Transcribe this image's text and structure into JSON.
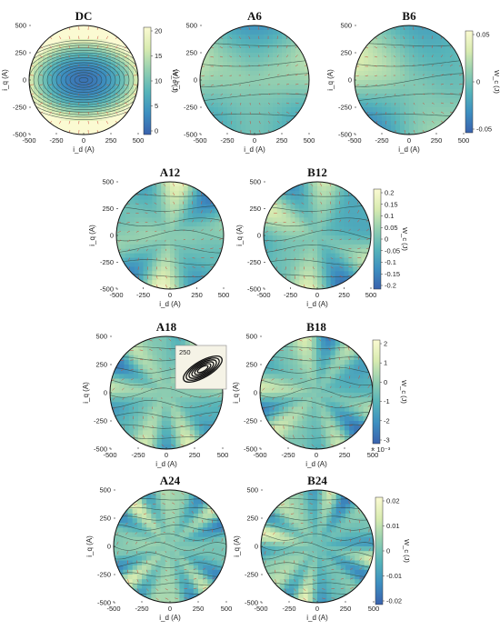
{
  "chart_data": [
    {
      "id": "DC",
      "title": "DC",
      "type": "heatmap",
      "xlabel": "i_d (A)",
      "ylabel": "i_q (A)",
      "xticks": [
        "-500",
        "-250",
        "0",
        "250",
        "500"
      ],
      "yticks": [
        "500",
        "250",
        "0",
        "-250",
        "-500"
      ],
      "xlim": [
        -500,
        500
      ],
      "ylim": [
        -500,
        500
      ],
      "pattern": "radial",
      "colorbar": {
        "label": "W_c (J)",
        "ticks": [
          "20",
          "15",
          "10",
          "5",
          "0"
        ],
        "range": [
          0,
          20
        ]
      }
    },
    {
      "id": "A6",
      "title": "A6",
      "type": "heatmap",
      "xlabel": "i_d (A)",
      "ylabel": "i_q (A)",
      "xticks": [
        "-500",
        "-250",
        "0",
        "250",
        "500"
      ],
      "yticks": [
        "500",
        "250",
        "0",
        "-250",
        "-500"
      ],
      "xlim": [
        -500,
        500
      ],
      "ylim": [
        -500,
        500
      ],
      "pattern": "harmonic",
      "order": 6
    },
    {
      "id": "B6",
      "title": "B6",
      "type": "heatmap",
      "xlabel": "i_d (A)",
      "ylabel": "i_q (A)",
      "xticks": [
        "-500",
        "-250",
        "0",
        "250",
        "500"
      ],
      "yticks": [
        "500",
        "250",
        "0",
        "-250",
        "-500"
      ],
      "xlim": [
        -500,
        500
      ],
      "ylim": [
        -500,
        500
      ],
      "pattern": "harmonic",
      "order": 6,
      "colorbar": {
        "label": "W_c (J)",
        "ticks": [
          "0.05",
          "0",
          "-0.05"
        ],
        "range": [
          -0.08,
          0.11
        ]
      }
    },
    {
      "id": "A12",
      "title": "A12",
      "type": "heatmap",
      "xlabel": "i_d (A)",
      "ylabel": "i_q (A)",
      "xticks": [
        "-500",
        "-250",
        "0",
        "250",
        "500"
      ],
      "yticks": [
        "500",
        "250",
        "0",
        "-250",
        "-500"
      ],
      "xlim": [
        -500,
        500
      ],
      "ylim": [
        -500,
        500
      ],
      "pattern": "harmonic",
      "order": 12
    },
    {
      "id": "B12",
      "title": "B12",
      "type": "heatmap",
      "xlabel": "i_d (A)",
      "ylabel": "i_q (A)",
      "xticks": [
        "-500",
        "-250",
        "0",
        "250",
        "500"
      ],
      "yticks": [
        "500",
        "250",
        "0",
        "-250",
        "-500"
      ],
      "xlim": [
        -500,
        500
      ],
      "ylim": [
        -500,
        500
      ],
      "pattern": "harmonic",
      "order": 12,
      "colorbar": {
        "label": "W_c (J)",
        "ticks": [
          "0.2",
          "0.15",
          "0.1",
          "0.05",
          "0",
          "-0.05",
          "-0.1",
          "-0.15",
          "-0.2"
        ],
        "range": [
          -0.22,
          0.22
        ]
      }
    },
    {
      "id": "A18",
      "title": "A18",
      "type": "heatmap",
      "xlabel": "i_d (A)",
      "ylabel": "i_q (A)",
      "xticks": [
        "-500",
        "-250",
        "0",
        "250",
        "500"
      ],
      "yticks": [
        "500",
        "250",
        "0",
        "-250",
        "-500"
      ],
      "xlim": [
        -500,
        500
      ],
      "ylim": [
        -500,
        500
      ],
      "pattern": "harmonic",
      "order": 18,
      "inset_tick": "250"
    },
    {
      "id": "B18",
      "title": "B18",
      "type": "heatmap",
      "xlabel": "i_d (A)",
      "ylabel": "i_q (A)",
      "xticks": [
        "-500",
        "-250",
        "0",
        "250",
        "500"
      ],
      "yticks": [
        "500",
        "250",
        "0",
        "-250",
        "-500"
      ],
      "xlim": [
        -500,
        500
      ],
      "ylim": [
        -500,
        500
      ],
      "pattern": "harmonic",
      "order": 18,
      "colorbar": {
        "label": "W_c (J)",
        "ticks": [
          "2",
          "1",
          "0",
          "-1",
          "-2",
          "-3"
        ],
        "range": [
          -3.5,
          2.5
        ],
        "exponent": "× 10⁻³"
      }
    },
    {
      "id": "A24",
      "title": "A24",
      "type": "heatmap",
      "xlabel": "i_d (A)",
      "ylabel": "i_q (A)",
      "xticks": [
        "-500",
        "-250",
        "0",
        "250",
        "500"
      ],
      "yticks": [
        "500",
        "250",
        "0",
        "-250",
        "-500"
      ],
      "xlim": [
        -500,
        500
      ],
      "ylim": [
        -500,
        500
      ],
      "pattern": "harmonic",
      "order": 24
    },
    {
      "id": "B24",
      "title": "B24",
      "type": "heatmap",
      "xlabel": "i_d (A)",
      "ylabel": "i_q (A)",
      "xticks": [
        "-500",
        "-250",
        "0",
        "250",
        "500"
      ],
      "yticks": [
        "500",
        "250",
        "0",
        "-250",
        "-500"
      ],
      "xlim": [
        -500,
        500
      ],
      "ylim": [
        -500,
        500
      ],
      "pattern": "harmonic",
      "order": 24,
      "colorbar": {
        "label": "W_c (J)",
        "ticks": [
          "0.02",
          "0.01",
          "0",
          "-0.01",
          "-0.02"
        ],
        "range": [
          -0.025,
          0.03
        ]
      }
    }
  ],
  "colors": {
    "colormap": [
      "#3a62ad",
      "#3d8fc0",
      "#56b4b9",
      "#93cfb0",
      "#d8ebb0",
      "#fbfad2"
    ],
    "contour": "#2c3f3a",
    "quiver": "#c94a3a",
    "circle_edge": "#111111"
  }
}
